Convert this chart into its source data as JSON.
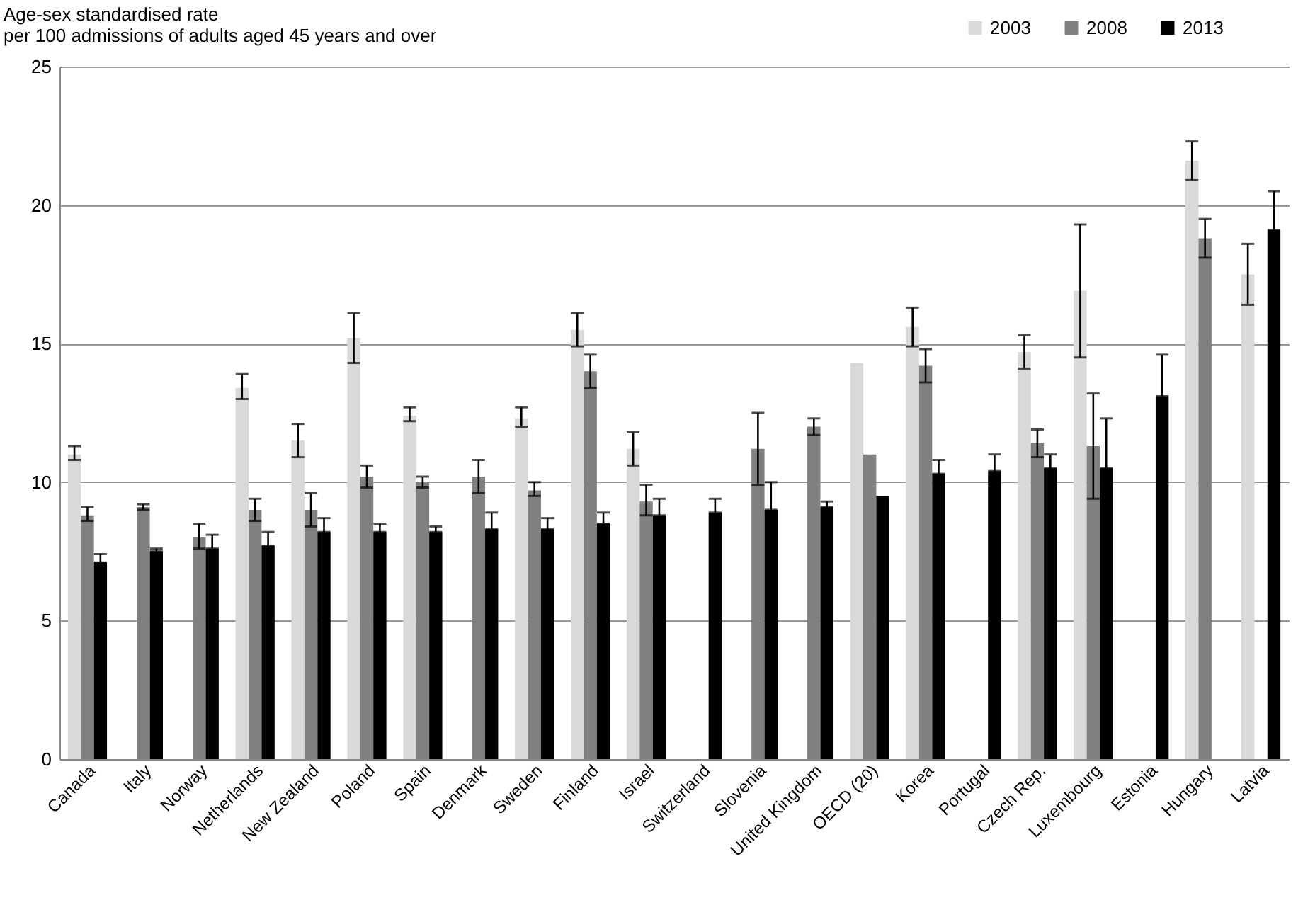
{
  "chart_data": {
    "type": "bar",
    "ylabel": "Age-sex standardised rate\nper 100 admissions of adults aged 45 years and over",
    "categories": [
      "Canada",
      "Italy",
      "Norway",
      "Netherlands",
      "New Zealand",
      "Poland",
      "Spain",
      "Denmark",
      "Sweden",
      "Finland",
      "Israel",
      "Switzerland",
      "Slovenia",
      "United Kingdom",
      "OECD (20)",
      "Korea",
      "Portugal",
      "Czech Rep.",
      "Luxembourg",
      "Estonia",
      "Hungary",
      "Latvia"
    ],
    "series": [
      {
        "name": "2003",
        "color": "#d9d9d9",
        "values": [
          11.0,
          null,
          null,
          13.4,
          11.5,
          15.2,
          12.4,
          null,
          12.3,
          15.5,
          11.2,
          null,
          null,
          null,
          14.3,
          15.6,
          null,
          14.7,
          16.9,
          null,
          21.6,
          17.5
        ],
        "errors": [
          [
            10.8,
            11.3
          ],
          null,
          null,
          [
            13.0,
            13.9
          ],
          [
            10.9,
            12.1
          ],
          [
            14.3,
            16.1
          ],
          [
            12.2,
            12.7
          ],
          null,
          [
            12.0,
            12.7
          ],
          [
            14.9,
            16.1
          ],
          [
            10.6,
            11.8
          ],
          null,
          null,
          null,
          null,
          [
            14.9,
            16.3
          ],
          null,
          [
            14.1,
            15.3
          ],
          [
            14.5,
            19.3
          ],
          null,
          [
            20.9,
            22.3
          ],
          [
            16.4,
            18.6
          ]
        ]
      },
      {
        "name": "2008",
        "color": "#808080",
        "values": [
          8.8,
          9.1,
          8.0,
          9.0,
          9.0,
          10.2,
          10.0,
          10.2,
          9.7,
          14.0,
          9.3,
          null,
          11.2,
          12.0,
          11.0,
          14.2,
          null,
          11.4,
          11.3,
          null,
          18.8,
          null
        ],
        "errors": [
          [
            8.6,
            9.1
          ],
          [
            9.0,
            9.2
          ],
          [
            7.6,
            8.5
          ],
          [
            8.6,
            9.4
          ],
          [
            8.4,
            9.6
          ],
          [
            9.8,
            10.6
          ],
          [
            9.8,
            10.2
          ],
          [
            9.6,
            10.8
          ],
          [
            9.5,
            10.0
          ],
          [
            13.4,
            14.6
          ],
          [
            8.8,
            9.9
          ],
          null,
          [
            9.9,
            12.5
          ],
          [
            11.7,
            12.3
          ],
          null,
          [
            13.6,
            14.8
          ],
          null,
          [
            10.9,
            11.9
          ],
          [
            9.4,
            13.2
          ],
          null,
          [
            18.1,
            19.5
          ],
          null
        ]
      },
      {
        "name": "2013",
        "color": "#000000",
        "values": [
          7.1,
          7.5,
          7.6,
          7.7,
          8.2,
          8.2,
          8.2,
          8.3,
          8.3,
          8.5,
          8.8,
          8.9,
          9.0,
          9.1,
          9.5,
          10.3,
          10.4,
          10.5,
          10.5,
          13.1,
          null,
          19.1
        ],
        "errors": [
          [
            7.1,
            7.4
          ],
          [
            7.5,
            7.6
          ],
          [
            7.6,
            8.1
          ],
          [
            7.7,
            8.2
          ],
          [
            8.2,
            8.7
          ],
          [
            8.2,
            8.5
          ],
          [
            8.2,
            8.4
          ],
          [
            8.3,
            8.9
          ],
          [
            8.3,
            8.7
          ],
          [
            8.5,
            8.9
          ],
          [
            8.8,
            9.4
          ],
          [
            8.9,
            9.4
          ],
          [
            9.0,
            10.0
          ],
          [
            9.1,
            9.3
          ],
          null,
          [
            10.3,
            10.8
          ],
          [
            10.4,
            11.0
          ],
          [
            10.5,
            11.0
          ],
          [
            10.5,
            12.3
          ],
          [
            13.1,
            14.6
          ],
          null,
          [
            19.1,
            20.5
          ]
        ]
      }
    ],
    "ylim": [
      0,
      25
    ],
    "yticks": [
      0,
      5,
      10,
      15,
      20,
      25
    ],
    "grid": "y",
    "legend": "top right"
  }
}
